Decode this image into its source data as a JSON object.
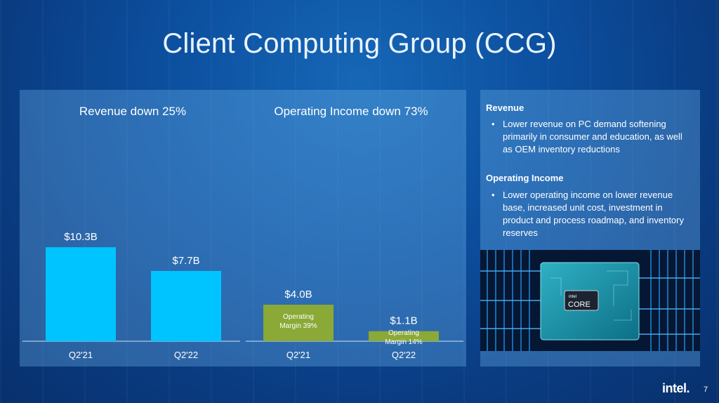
{
  "slide": {
    "title": "Client Computing Group (CCG)",
    "page_number": "7",
    "logo_text": "intel."
  },
  "colors": {
    "revenue_bar": "#00c4ff",
    "income_bar": "#8aa936",
    "panel": "#70b6ee",
    "background": "#0a3f86"
  },
  "chart_data": [
    {
      "type": "bar",
      "title": "Revenue down 25%",
      "categories": [
        "Q2'21",
        "Q2'22"
      ],
      "values": [
        10.3,
        7.7
      ],
      "value_labels": [
        "$10.3B",
        "$7.7B"
      ],
      "unit": "$B",
      "ylim": [
        0,
        12
      ],
      "grid": false,
      "color": "#00c4ff"
    },
    {
      "type": "bar",
      "title": "Operating Income down 73%",
      "categories": [
        "Q2'21",
        "Q2'22"
      ],
      "values": [
        4.0,
        1.1
      ],
      "value_labels": [
        "$4.0B",
        "$1.1B"
      ],
      "annotations": [
        [
          "Operating",
          "Margin 39%"
        ],
        [
          "Operating",
          "Margin 14%"
        ]
      ],
      "unit": "$B",
      "ylim": [
        0,
        12
      ],
      "grid": false,
      "color": "#8aa936"
    }
  ],
  "commentary": {
    "revenue_heading": "Revenue",
    "revenue_bullet": "Lower revenue on PC demand softening primarily in consumer and education, as well as OEM inventory reductions",
    "income_heading": "Operating Income",
    "income_bullet": "Lower operating income on lower revenue base, increased unit cost, investment in product and process roadmap, and inventory reserves"
  },
  "chip": {
    "brand": "intel",
    "product": "CORE"
  }
}
